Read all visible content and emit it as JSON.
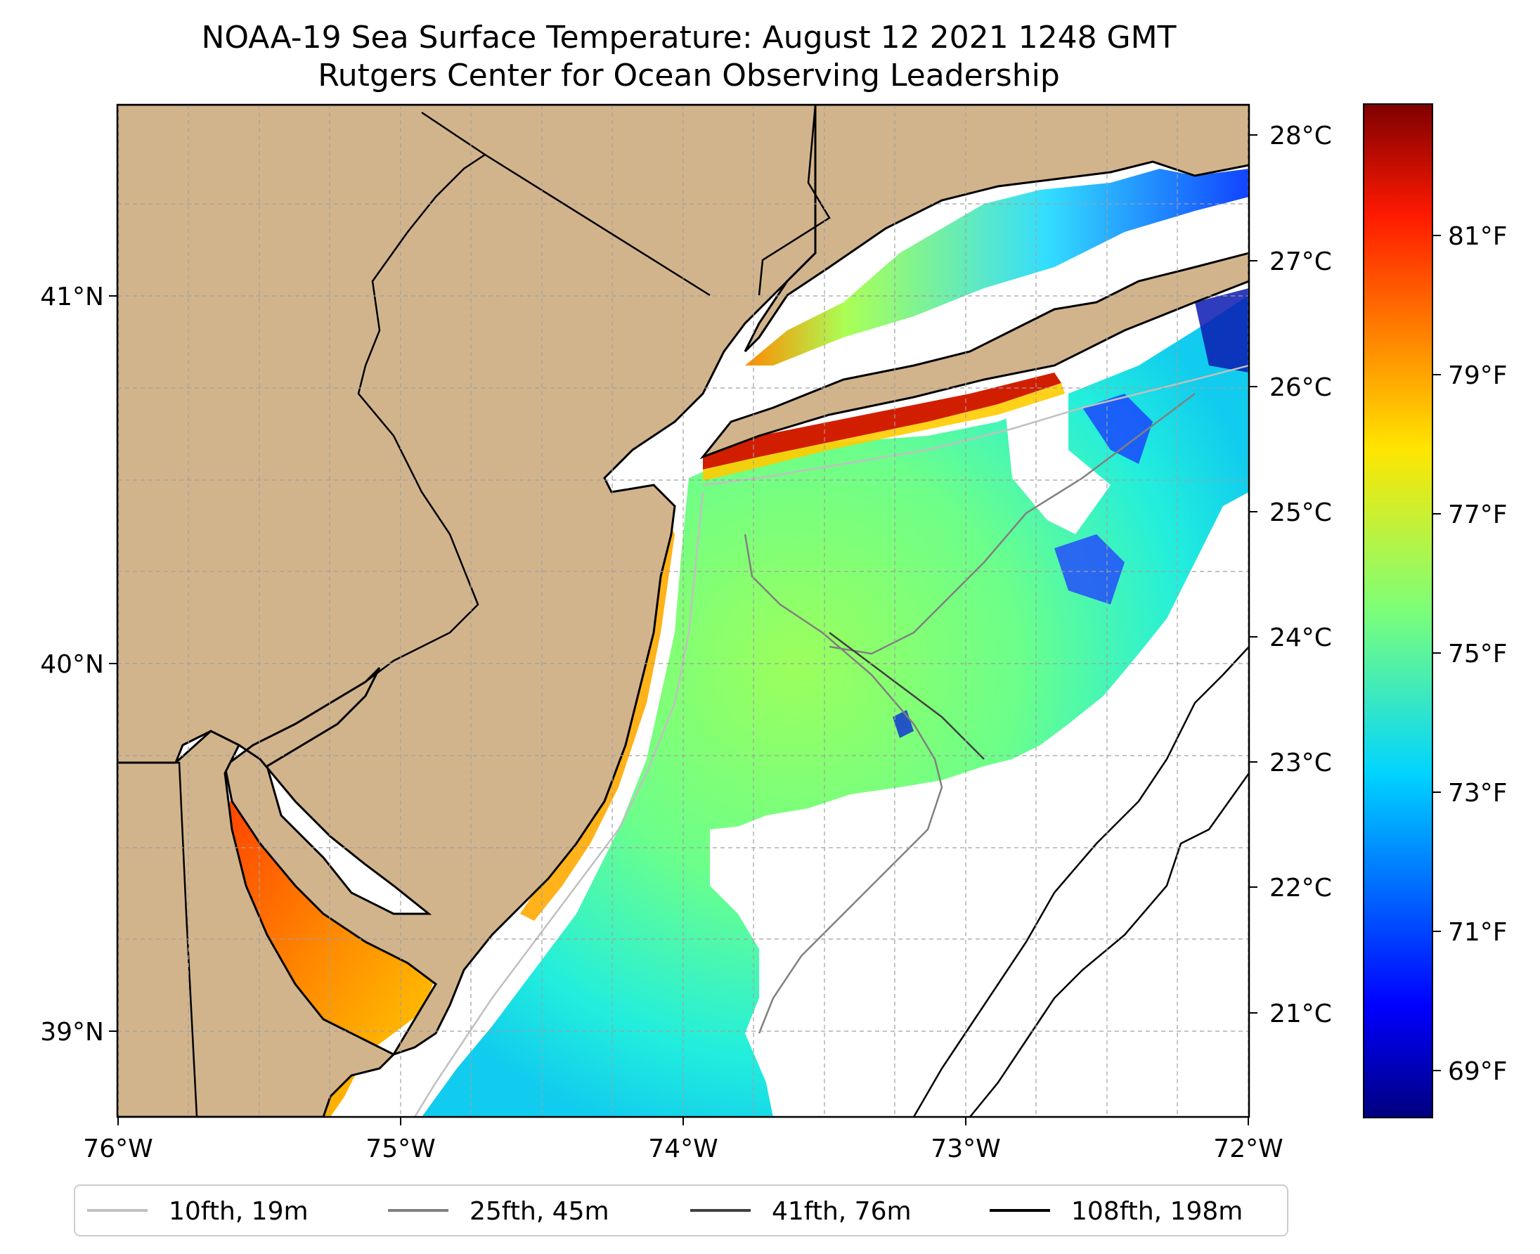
{
  "title": {
    "line1": "NOAA-19 Sea Surface Temperature: August 12 2021 1248 GMT",
    "line2": "Rutgers Center for Ocean Observing Leadership"
  },
  "map": {
    "lon_range": [
      -76.0,
      -72.0
    ],
    "lat_range": [
      38.75,
      41.5
    ],
    "land_color": "#d2b48c",
    "ocean_nodata_color": "#ffffff",
    "gridlines": true,
    "x_ticks": [
      "76°W",
      "75°W",
      "74°W",
      "73°W",
      "72°W"
    ],
    "y_ticks": [
      "41°N",
      "40°N",
      "39°N"
    ]
  },
  "colorbar": {
    "colormap": "jet",
    "celsius_ticks": [
      "28°C",
      "27°C",
      "26°C",
      "25°C",
      "24°C",
      "23°C",
      "22°C",
      "21°C"
    ],
    "fahrenheit_ticks": [
      "81°F",
      "79°F",
      "77°F",
      "75°F",
      "73°F",
      "71°F",
      "69°F"
    ],
    "celsius_range": [
      20.2,
      28.3
    ]
  },
  "legend": {
    "placement": "bottom",
    "items": [
      {
        "label": "10fth, 19m",
        "color": "#c0c0c0"
      },
      {
        "label": "25fth, 45m",
        "color": "#808080"
      },
      {
        "label": "41fth, 76m",
        "color": "#404040"
      },
      {
        "label": "108fth, 198m",
        "color": "#000000"
      }
    ]
  }
}
